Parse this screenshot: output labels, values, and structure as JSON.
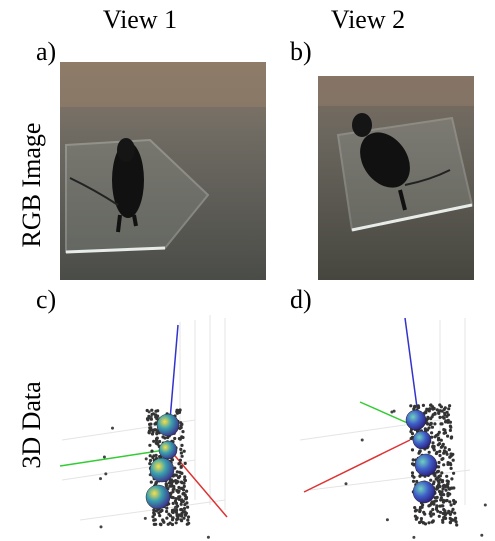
{
  "header": {
    "columns": [
      "View 1",
      "View 2"
    ]
  },
  "rows": [
    "RGB Image",
    "3D Data"
  ],
  "panels": [
    "a)",
    "b)",
    "c)",
    "d)"
  ]
}
